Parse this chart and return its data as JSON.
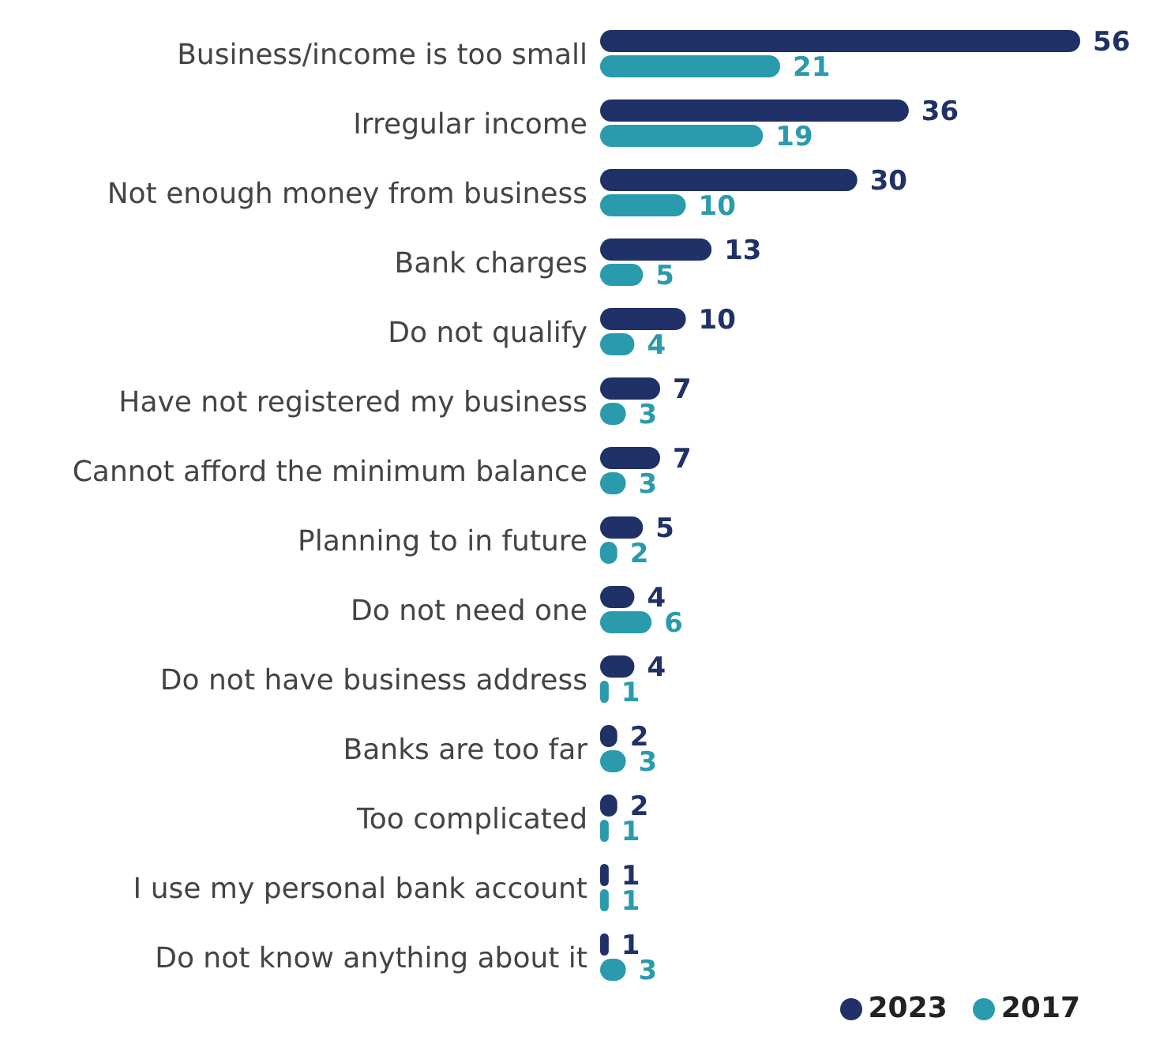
{
  "chart_data": {
    "type": "bar",
    "orientation": "horizontal",
    "categories": [
      "Business/income is too small",
      "Irregular income",
      "Not enough money from business",
      "Bank charges",
      "Do not qualify",
      "Have not registered my business",
      "Cannot afford the minimum balance",
      "Planning to in future",
      "Do not need one",
      "Do not have business address",
      "Banks are too far",
      "Too complicated",
      "I use my personal bank account",
      "Do not know anything about it"
    ],
    "series": [
      {
        "name": "2023",
        "color": "#1f3166",
        "values": [
          56,
          36,
          30,
          13,
          10,
          7,
          7,
          5,
          4,
          4,
          2,
          2,
          1,
          1
        ]
      },
      {
        "name": "2017",
        "color": "#2a9aad",
        "values": [
          21,
          19,
          10,
          5,
          4,
          3,
          3,
          2,
          6,
          1,
          3,
          1,
          1,
          3
        ]
      }
    ],
    "data_labels": true,
    "legend": "bottom right",
    "grid": false
  }
}
